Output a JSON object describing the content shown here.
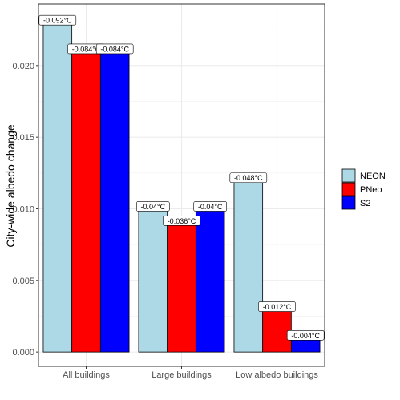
{
  "chart_data": {
    "type": "bar",
    "title": "",
    "xlabel": "",
    "ylabel": "City-wide albedo change",
    "ylim": [
      -0.001,
      0.0243
    ],
    "yticks": [
      "0.000",
      "0.005",
      "0.010",
      "0.015",
      "0.020"
    ],
    "ytick_values": [
      0.0,
      0.005,
      0.01,
      0.015,
      0.02
    ],
    "categories": [
      "All buildings",
      "Large buildings",
      "Low albedo buildings"
    ],
    "grid": true,
    "legend_position": "right",
    "series": [
      {
        "name": "NEON",
        "color": "#add8e6",
        "values": [
          0.023,
          0.01,
          0.012
        ],
        "labels": [
          "-0.092°C",
          "-0.04°C",
          "-0.048°C"
        ]
      },
      {
        "name": "PNeo",
        "color": "#ff0000",
        "values": [
          0.021,
          0.009,
          0.003
        ],
        "labels": [
          "-0.084°C",
          "-0.036°C",
          "-0.012°C"
        ]
      },
      {
        "name": "S2",
        "color": "#0000ff",
        "values": [
          0.021,
          0.01,
          0.001
        ],
        "labels": [
          "-0.084°C",
          "-0.04°C",
          "-0.004°C"
        ]
      }
    ]
  }
}
